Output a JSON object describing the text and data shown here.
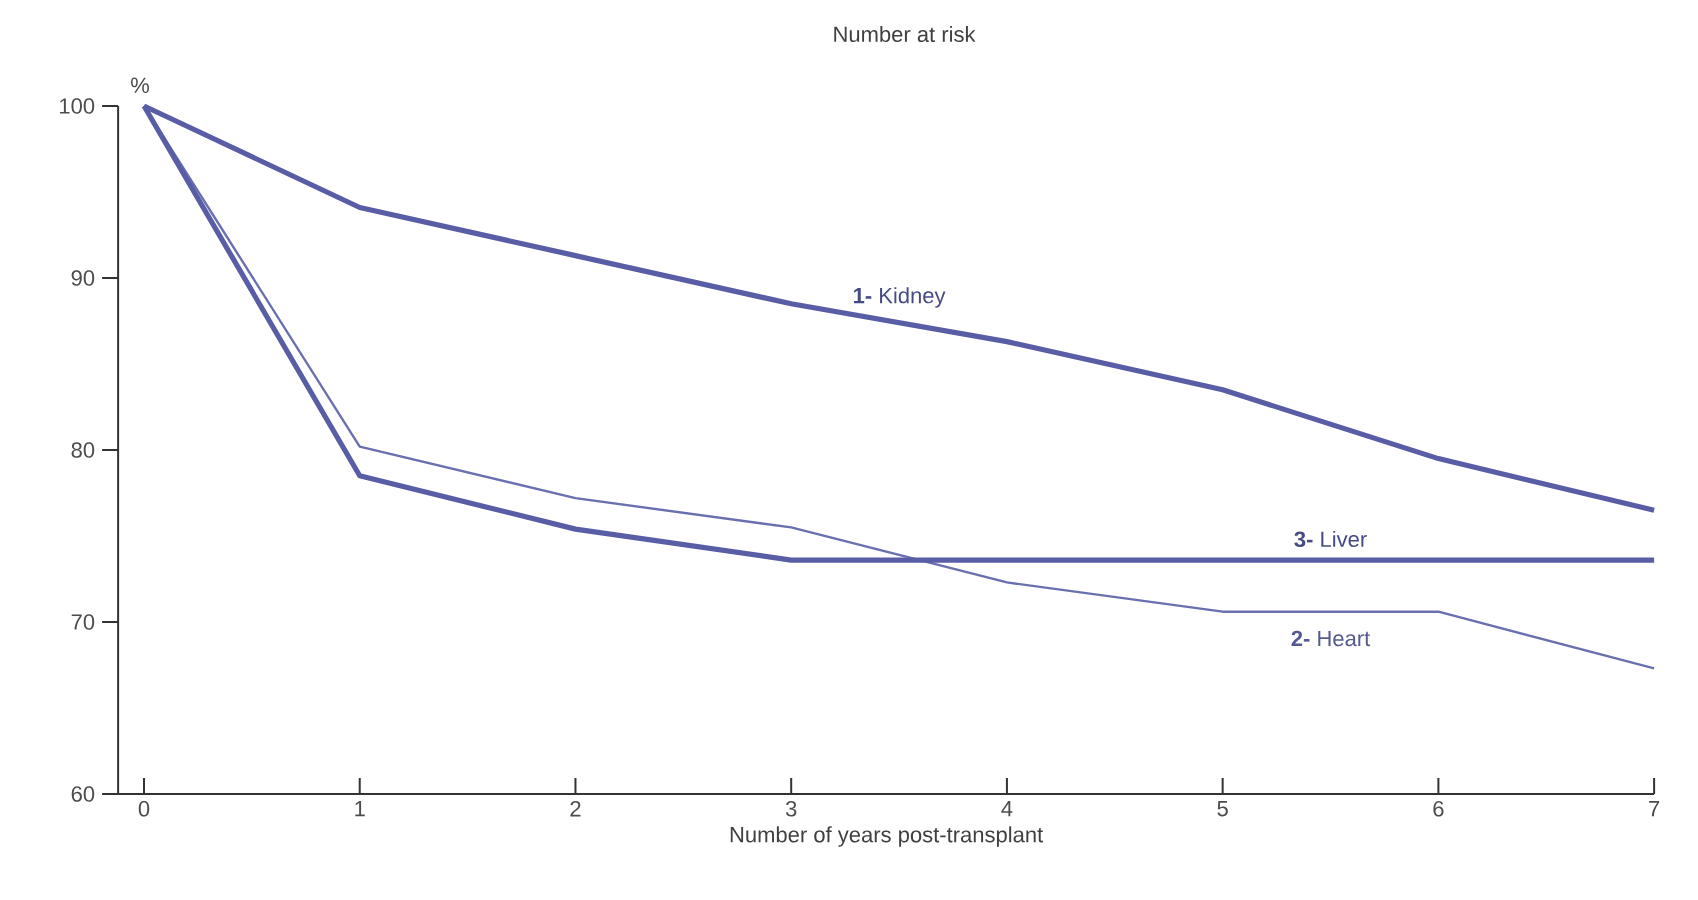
{
  "chart_data": {
    "type": "line",
    "title": "Number at risk",
    "xlabel": "Number of years post-transplant",
    "ylabel": "%",
    "x": [
      0,
      1,
      2,
      3,
      4,
      5,
      6,
      7
    ],
    "series": [
      {
        "name": "**1-** Kidney",
        "color": "#585da6",
        "values": [
          100,
          94.1,
          91.3,
          88.5,
          86.3,
          83.5,
          79.5,
          76.5
        ]
      },
      {
        "name": "**2-** Heart",
        "color": "#6a6fb0",
        "values": [
          100,
          80.2,
          77.2,
          75.5,
          72.3,
          70.6,
          70.6,
          67.3
        ]
      },
      {
        "name": "**3-** Liver",
        "color": "#585da6",
        "values": [
          100,
          78.5,
          75.4,
          73.6,
          73.6,
          73.6,
          73.6,
          73.6
        ]
      }
    ],
    "xlim": [
      -0.12,
      7
    ],
    "ylim": [
      60,
      100
    ],
    "xticks": [
      0,
      1,
      2,
      3,
      4,
      5,
      6,
      7
    ],
    "yticks": [
      60,
      70,
      80,
      90,
      100
    ],
    "grid": false,
    "marker": "none",
    "line_style": "solid"
  }
}
